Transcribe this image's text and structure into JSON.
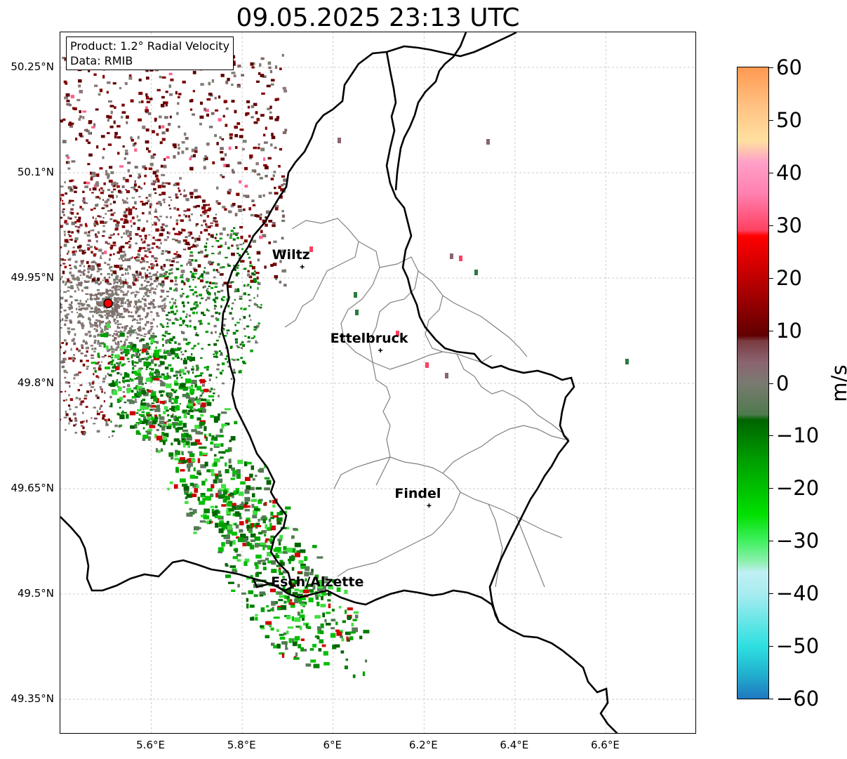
{
  "title": "09.05.2025 23:13 UTC",
  "info": {
    "product": "Product: 1.2° Radial Velocity",
    "data_source": "Data: RMIB"
  },
  "map": {
    "lon_range": [
      5.4,
      6.8
    ],
    "lat_range": [
      49.3,
      50.3
    ],
    "lat_ticks": [
      {
        "value": 50.25,
        "label": "50.25°N"
      },
      {
        "value": 50.1,
        "label": "50.1°N"
      },
      {
        "value": 49.95,
        "label": "49.95°N"
      },
      {
        "value": 49.8,
        "label": "49.8°N"
      },
      {
        "value": 49.65,
        "label": "49.65°N"
      },
      {
        "value": 49.5,
        "label": "49.5°N"
      },
      {
        "value": 49.35,
        "label": "49.35°N"
      }
    ],
    "lon_ticks": [
      {
        "value": 5.6,
        "label": "5.6°E"
      },
      {
        "value": 5.8,
        "label": "5.8°E"
      },
      {
        "value": 6.0,
        "label": "6°E"
      },
      {
        "value": 6.2,
        "label": "6.2°E"
      },
      {
        "value": 6.4,
        "label": "6.4°E"
      },
      {
        "value": 6.6,
        "label": "6.6°E"
      }
    ],
    "radar_site": {
      "lon": 5.505,
      "lat": 49.914
    },
    "cities": [
      {
        "name": "Wiltz",
        "lon": 5.932,
        "lat": 49.966
      },
      {
        "name": "Ettelbruck",
        "lon": 6.104,
        "lat": 49.847
      },
      {
        "name": "Findel",
        "lon": 6.211,
        "lat": 49.626
      },
      {
        "name": "Esch/Alzette",
        "lon": 5.99,
        "lat": 49.5
      }
    ],
    "grid": true
  },
  "colorbar": {
    "unit": "m/s",
    "range": [
      -60,
      60
    ],
    "ticks": [
      {
        "value": 60,
        "label": "60"
      },
      {
        "value": 50,
        "label": "50"
      },
      {
        "value": 40,
        "label": "40"
      },
      {
        "value": 30,
        "label": "30"
      },
      {
        "value": 20,
        "label": "20"
      },
      {
        "value": 10,
        "label": "10"
      },
      {
        "value": 0,
        "label": "0"
      },
      {
        "value": -10,
        "label": "−10"
      },
      {
        "value": -20,
        "label": "−20"
      },
      {
        "value": -30,
        "label": "−30"
      },
      {
        "value": -40,
        "label": "−40"
      },
      {
        "value": -50,
        "label": "−50"
      },
      {
        "value": -60,
        "label": "−60"
      }
    ],
    "color_stops": [
      {
        "value": -60,
        "color": "#1f78c0"
      },
      {
        "value": -55,
        "color": "#22b4d0"
      },
      {
        "value": -50,
        "color": "#2ee0e0"
      },
      {
        "value": -40,
        "color": "#a8ecf0"
      },
      {
        "value": -36,
        "color": "#c0f0f4"
      },
      {
        "value": -34,
        "color": "#8ef0b0"
      },
      {
        "value": -30,
        "color": "#40f060"
      },
      {
        "value": -25,
        "color": "#00e000"
      },
      {
        "value": -15,
        "color": "#00a000"
      },
      {
        "value": -7,
        "color": "#006400"
      },
      {
        "value": -6,
        "color": "#4e7a4e"
      },
      {
        "value": 0,
        "color": "#7a7a70"
      },
      {
        "value": 4,
        "color": "#8a6470"
      },
      {
        "value": 8,
        "color": "#7a3a40"
      },
      {
        "value": 9,
        "color": "#600000"
      },
      {
        "value": 20,
        "color": "#c00000"
      },
      {
        "value": 28,
        "color": "#ff0000"
      },
      {
        "value": 29,
        "color": "#ff4060"
      },
      {
        "value": 36,
        "color": "#ff80b0"
      },
      {
        "value": 42,
        "color": "#ffa0c8"
      },
      {
        "value": 46,
        "color": "#ffe0a0"
      },
      {
        "value": 53,
        "color": "#ffc080"
      },
      {
        "value": 60,
        "color": "#ff9850"
      }
    ]
  }
}
